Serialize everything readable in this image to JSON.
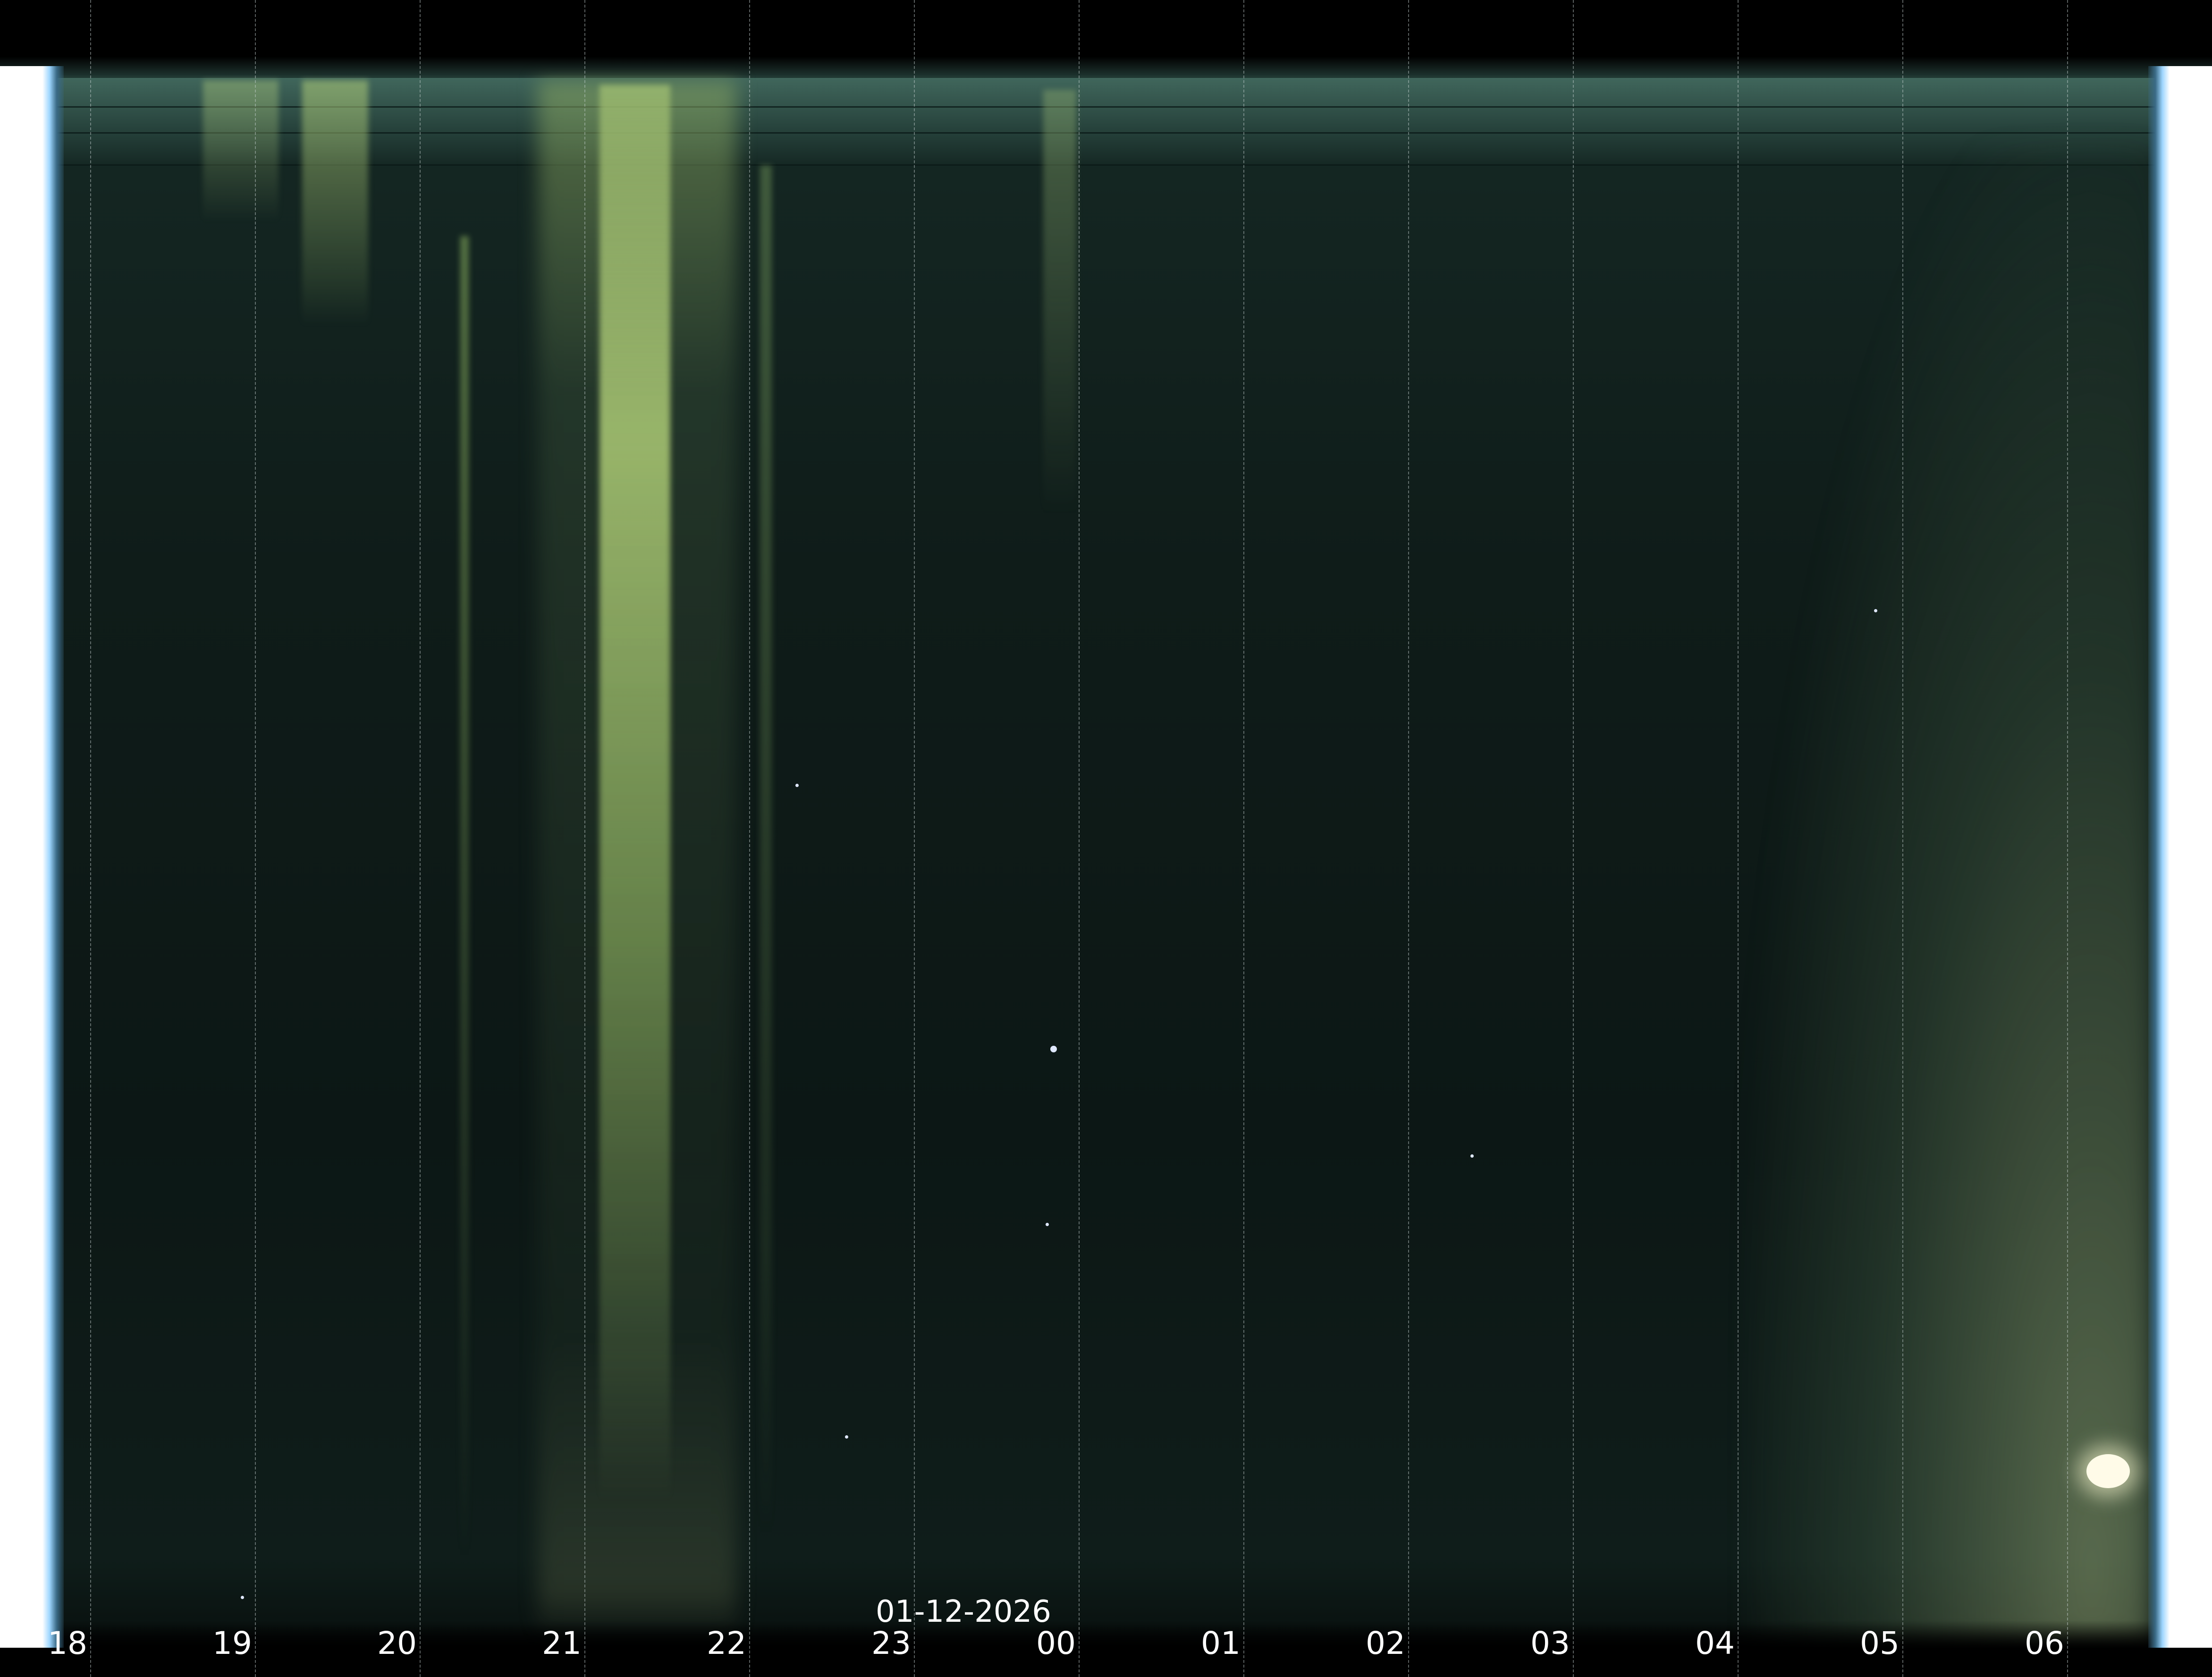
{
  "date_label": "01-12-2026",
  "time_axis": {
    "ticks": [
      "18",
      "19",
      "20",
      "21",
      "22",
      "23",
      "00",
      "01",
      "02",
      "03",
      "04",
      "05",
      "06"
    ]
  },
  "colors": {
    "background": "#0e1a17",
    "aurora": "#c8e08a",
    "edge_glow": "#9ed6ff",
    "label_text": "#ffffff"
  }
}
